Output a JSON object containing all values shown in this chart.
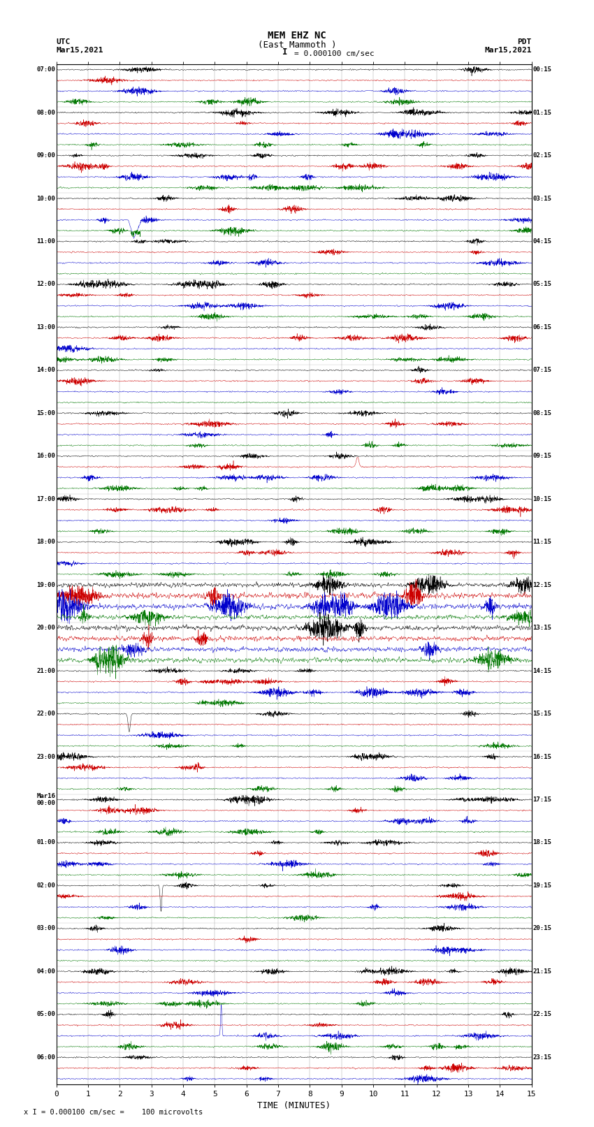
{
  "title_line1": "MEM EHZ NC",
  "title_line2": "(East Mammoth )",
  "title_line3": "I = 0.000100 cm/sec",
  "utc_label": "UTC",
  "utc_date": "Mar15,2021",
  "pdt_label": "PDT",
  "pdt_date": "Mar15,2021",
  "xlabel": "TIME (MINUTES)",
  "footer": "x I = 0.000100 cm/sec =    100 microvolts",
  "x_min": 0,
  "x_max": 15,
  "x_ticks": [
    0,
    1,
    2,
    3,
    4,
    5,
    6,
    7,
    8,
    9,
    10,
    11,
    12,
    13,
    14,
    15
  ],
  "colors": [
    "#000000",
    "#cc0000",
    "#0000cc",
    "#007700"
  ],
  "background_color": "#ffffff",
  "left_times": [
    "07:00",
    "",
    "",
    "",
    "08:00",
    "",
    "",
    "",
    "09:00",
    "",
    "",
    "",
    "10:00",
    "",
    "",
    "",
    "11:00",
    "",
    "",
    "",
    "12:00",
    "",
    "",
    "",
    "13:00",
    "",
    "",
    "",
    "14:00",
    "",
    "",
    "",
    "15:00",
    "",
    "",
    "",
    "16:00",
    "",
    "",
    "",
    "17:00",
    "",
    "",
    "",
    "18:00",
    "",
    "",
    "",
    "19:00",
    "",
    "",
    "",
    "20:00",
    "",
    "",
    "",
    "21:00",
    "",
    "",
    "",
    "22:00",
    "",
    "",
    "",
    "23:00",
    "",
    "",
    "",
    "Mar16\n00:00",
    "",
    "",
    "",
    "01:00",
    "",
    "",
    "",
    "02:00",
    "",
    "",
    "",
    "03:00",
    "",
    "",
    "",
    "04:00",
    "",
    "",
    "",
    "05:00",
    "",
    "",
    "",
    "06:00",
    "",
    ""
  ],
  "right_times": [
    "00:15",
    "",
    "",
    "",
    "01:15",
    "",
    "",
    "",
    "02:15",
    "",
    "",
    "",
    "03:15",
    "",
    "",
    "",
    "04:15",
    "",
    "",
    "",
    "05:15",
    "",
    "",
    "",
    "06:15",
    "",
    "",
    "",
    "07:15",
    "",
    "",
    "",
    "08:15",
    "",
    "",
    "",
    "09:15",
    "",
    "",
    "",
    "10:15",
    "",
    "",
    "",
    "11:15",
    "",
    "",
    "",
    "12:15",
    "",
    "",
    "",
    "13:15",
    "",
    "",
    "",
    "14:15",
    "",
    "",
    "",
    "15:15",
    "",
    "",
    "",
    "16:15",
    "",
    "",
    "",
    "17:15",
    "",
    "",
    "",
    "18:15",
    "",
    "",
    "",
    "19:15",
    "",
    "",
    "",
    "20:15",
    "",
    "",
    "",
    "21:15",
    "",
    "",
    "",
    "22:15",
    "",
    "",
    "",
    "23:15",
    "",
    ""
  ],
  "num_traces": 95,
  "noise_seed": 42
}
